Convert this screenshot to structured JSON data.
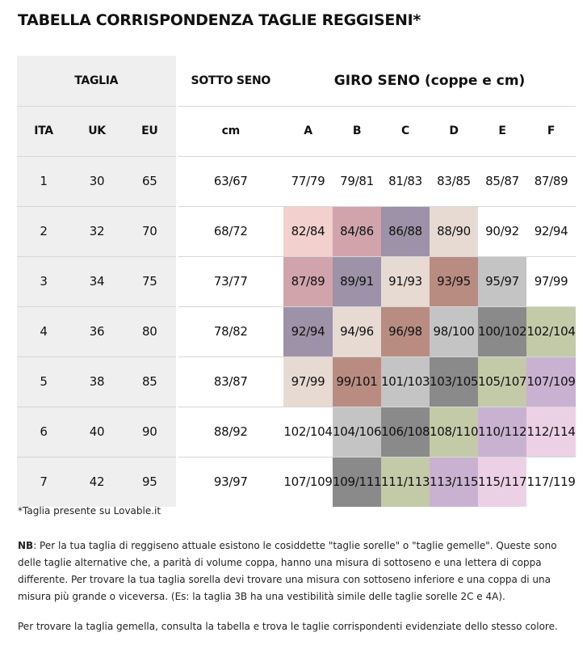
{
  "title": "TABELLA CORRISPONDENZA TAGLIE REGGISENI*",
  "header": {
    "taglia": "TAGLIA",
    "sotto_seno": "SOTTO SENO",
    "giro_seno": "GIRO SENO (coppe e cm)",
    "columns": [
      "ITA",
      "UK",
      "EU",
      "cm",
      "A",
      "B",
      "C",
      "D",
      "E",
      "F"
    ]
  },
  "rows": [
    {
      "ita": "1",
      "uk": "30",
      "eu": "65",
      "cm": "63/67",
      "cups": [
        {
          "value": "77/79",
          "color": "#ffffff"
        },
        {
          "value": "79/81",
          "color": "#ffffff"
        },
        {
          "value": "81/83",
          "color": "#ffffff"
        },
        {
          "value": "83/85",
          "color": "#ffffff"
        },
        {
          "value": "85/87",
          "color": "#ffffff"
        },
        {
          "value": "87/89",
          "color": "#ffffff"
        }
      ]
    },
    {
      "ita": "2",
      "uk": "32",
      "eu": "70",
      "cm": "68/72",
      "cups": [
        {
          "value": "82/84",
          "color": "#f1d0cd"
        },
        {
          "value": "84/86",
          "color": "#d1a4ac"
        },
        {
          "value": "86/88",
          "color": "#9d92a7"
        },
        {
          "value": "88/90",
          "color": "#e6dad2"
        },
        {
          "value": "90/92",
          "color": "#ffffff"
        },
        {
          "value": "92/94",
          "color": "#ffffff"
        }
      ]
    },
    {
      "ita": "3",
      "uk": "34",
      "eu": "75",
      "cm": "73/77",
      "cups": [
        {
          "value": "87/89",
          "color": "#d1a4ac"
        },
        {
          "value": "89/91",
          "color": "#9d92a7"
        },
        {
          "value": "91/93",
          "color": "#e6dad2"
        },
        {
          "value": "93/95",
          "color": "#b98c82"
        },
        {
          "value": "95/97",
          "color": "#c4c4c4"
        },
        {
          "value": "97/99",
          "color": "#ffffff"
        }
      ]
    },
    {
      "ita": "4",
      "uk": "36",
      "eu": "80",
      "cm": "78/82",
      "cups": [
        {
          "value": "92/94",
          "color": "#9d92a7"
        },
        {
          "value": "94/96",
          "color": "#e6dad2"
        },
        {
          "value": "96/98",
          "color": "#b98c82"
        },
        {
          "value": "98/100",
          "color": "#c4c4c4"
        },
        {
          "value": "100/102",
          "color": "#8a8a8a"
        },
        {
          "value": "102/104",
          "color": "#c3caa8"
        }
      ]
    },
    {
      "ita": "5",
      "uk": "38",
      "eu": "85",
      "cm": "83/87",
      "cups": [
        {
          "value": "97/99",
          "color": "#e6dad2"
        },
        {
          "value": "99/101",
          "color": "#b98c82"
        },
        {
          "value": "101/103",
          "color": "#c4c4c4"
        },
        {
          "value": "103/105",
          "color": "#8a8a8a"
        },
        {
          "value": "105/107",
          "color": "#c3caa8"
        },
        {
          "value": "107/109",
          "color": "#c9b2d1"
        }
      ]
    },
    {
      "ita": "6",
      "uk": "40",
      "eu": "90",
      "cm": "88/92",
      "cups": [
        {
          "value": "102/104",
          "color": "#ffffff"
        },
        {
          "value": "104/106",
          "color": "#c4c4c4"
        },
        {
          "value": "106/108",
          "color": "#8a8a8a"
        },
        {
          "value": "108/110",
          "color": "#c3caa8"
        },
        {
          "value": "110/112",
          "color": "#c9b2d1"
        },
        {
          "value": "112/114",
          "color": "#ecd1e6"
        }
      ]
    },
    {
      "ita": "7",
      "uk": "42",
      "eu": "95",
      "cm": "93/97",
      "cups": [
        {
          "value": "107/109",
          "color": "#ffffff"
        },
        {
          "value": "109/111",
          "color": "#8a8a8a"
        },
        {
          "value": "111/113",
          "color": "#c3caa8"
        },
        {
          "value": "113/115",
          "color": "#c9b2d1"
        },
        {
          "value": "115/117",
          "color": "#ecd1e6"
        },
        {
          "value": "117/119",
          "color": "#ffffff"
        }
      ]
    }
  ],
  "footnote": "*Taglia presente su Lovable.it",
  "note": {
    "label": "NB",
    "text": ": Per la tua taglia di reggiseno attuale esistono le cosiddette \"taglie sorelle\" o \"taglie gemelle\". Queste sono delle taglie alternative che, a parità di volume coppa, hanno una misura di sottoseno e una lettera di coppa differente. Per trovare la tua taglia sorella devi trovare una misura con sottoseno inferiore e una coppa di una misura più grande o viceversa. (Es: la taglia 3B ha una vestibilità simile delle taglie sorelle 2C e 4A).",
    "second": "Per trovare la taglia gemella, consulta la tabella e trova le taglie corrispondenti evidenziate dello stesso colore."
  }
}
